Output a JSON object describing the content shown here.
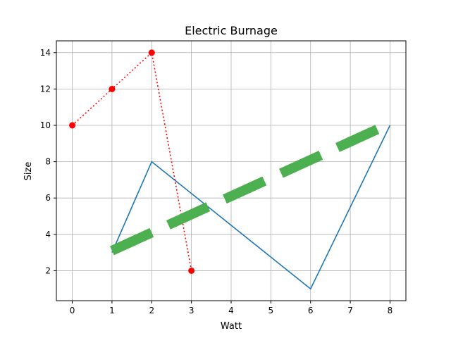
{
  "chart_data": {
    "type": "line",
    "title": "Electric Burnage",
    "xlabel": "Watt",
    "ylabel": "Size",
    "xlim": [
      -0.4,
      8.4
    ],
    "ylim": [
      0.35,
      14.65
    ],
    "xticks": [
      0,
      1,
      2,
      3,
      4,
      5,
      6,
      7,
      8
    ],
    "yticks": [
      2,
      4,
      6,
      8,
      10,
      12,
      14
    ],
    "grid": true,
    "series": [
      {
        "style": "solid",
        "color": "#1f77b4",
        "x": [
          1,
          2,
          6,
          8
        ],
        "y": [
          3,
          8,
          1,
          10
        ]
      },
      {
        "style": "dotted-with-markers",
        "color": "#ff0000",
        "x": [
          0,
          1,
          2,
          3
        ],
        "y": [
          10,
          12,
          14,
          2
        ]
      },
      {
        "style": "thick-dashed",
        "color": "#4caf50",
        "x": [
          1,
          7.7
        ],
        "y": [
          3.1,
          9.8
        ]
      }
    ]
  }
}
